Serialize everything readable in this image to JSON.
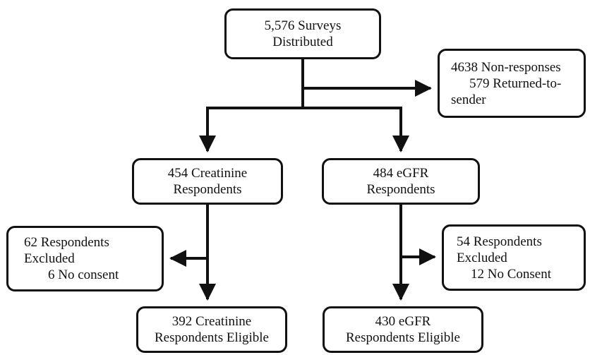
{
  "diagram": {
    "nodes": {
      "distributed": {
        "lines": [
          "5,576 Surveys",
          "Distributed"
        ]
      },
      "nonresponses": {
        "lines": [
          "4638 Non-responses",
          "579 Returned-to-",
          "sender"
        ]
      },
      "creatinine_respondents": {
        "lines": [
          "454 Creatinine",
          "Respondents"
        ]
      },
      "egfr_respondents": {
        "lines": [
          "484 eGFR",
          "Respondents"
        ]
      },
      "creatinine_excluded": {
        "lines": [
          "62 Respondents",
          "Excluded",
          "6 No consent"
        ]
      },
      "egfr_excluded": {
        "lines": [
          "54 Respondents",
          "Excluded",
          "12 No Consent"
        ]
      },
      "creatinine_eligible": {
        "lines": [
          "392 Creatinine",
          "Respondents Eligible"
        ]
      },
      "egfr_eligible": {
        "lines": [
          "430 eGFR",
          "Respondents Eligible"
        ]
      }
    },
    "colors": {
      "stroke": "#111111",
      "background": "#ffffff"
    }
  }
}
